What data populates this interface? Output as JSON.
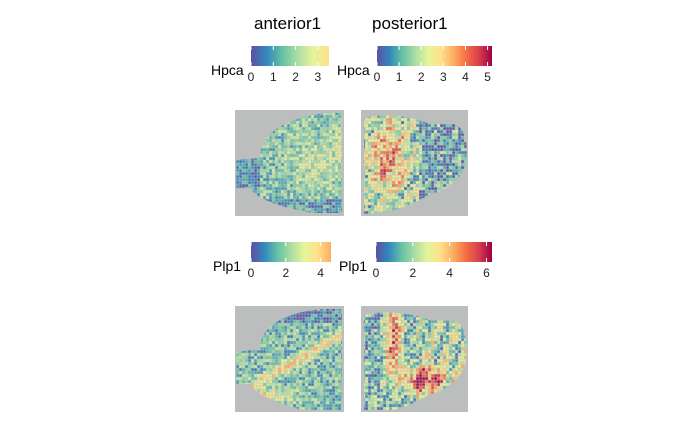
{
  "chart_data": {
    "type": "heatmap",
    "columns": [
      "anterior1",
      "posterior1"
    ],
    "features": [
      {
        "name": "Hpca",
        "legends": [
          {
            "section": "anterior1",
            "label": "Hpca",
            "range": [
              0,
              3.5
            ],
            "ticks": [
              "0",
              "1",
              "2",
              "3"
            ],
            "palette": [
              "#5e4fa2",
              "#3288bd",
              "#66c2a5",
              "#abdda4",
              "#e6f598",
              "#fee08b"
            ]
          },
          {
            "section": "posterior1",
            "label": "Hpca",
            "range": [
              0,
              5.2
            ],
            "ticks": [
              "0",
              "1",
              "2",
              "3",
              "4",
              "5"
            ],
            "palette": [
              "#5e4fa2",
              "#3288bd",
              "#66c2a5",
              "#abdda4",
              "#e6f598",
              "#fee08b",
              "#fdae61",
              "#f46d43",
              "#d53e4f",
              "#9e0142"
            ]
          }
        ]
      },
      {
        "name": "Plp1",
        "legends": [
          {
            "section": "anterior1",
            "label": "Plp1",
            "range": [
              0,
              4.6
            ],
            "ticks": [
              "0",
              "2",
              "4"
            ],
            "palette": [
              "#5e4fa2",
              "#3288bd",
              "#66c2a5",
              "#abdda4",
              "#e6f598",
              "#fee08b",
              "#fdae61"
            ]
          },
          {
            "section": "posterior1",
            "label": "Plp1",
            "range": [
              0,
              6.3
            ],
            "ticks": [
              "0",
              "2",
              "4",
              "6"
            ],
            "palette": [
              "#5e4fa2",
              "#3288bd",
              "#66c2a5",
              "#abdda4",
              "#e6f598",
              "#fee08b",
              "#fdae61",
              "#f46d43",
              "#d53e4f",
              "#9e0142"
            ]
          }
        ]
      }
    ]
  }
}
